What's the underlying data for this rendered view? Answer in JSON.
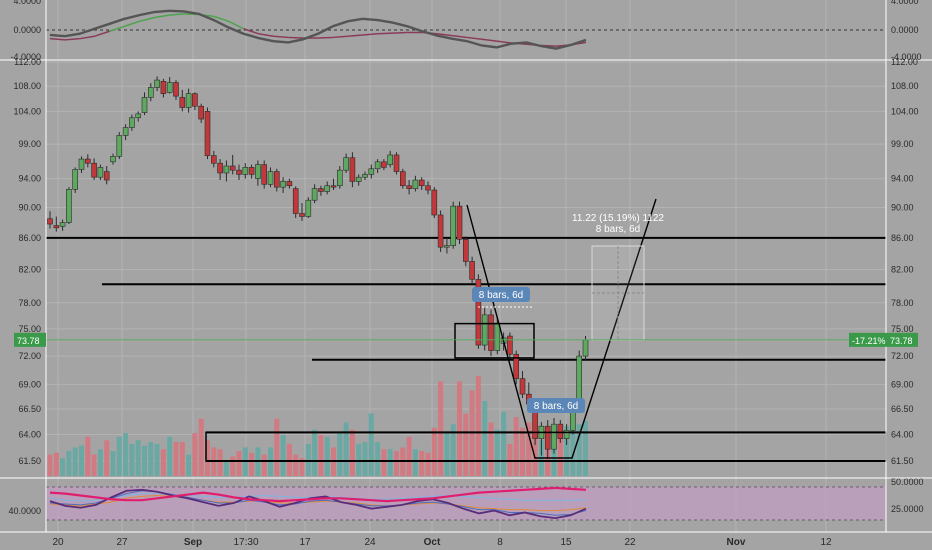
{
  "colors": {
    "background": "#a4a4a4",
    "up": "#5fa860",
    "down": "#c0383a",
    "vol_up": "#6aa8a4",
    "vol_down": "#d27a82",
    "osc_main": "#555555",
    "osc_green": "#4da34d",
    "osc_red": "#8a3b5b",
    "rsi_band": "#c29ec2",
    "price_tag": "#3a9a4a",
    "ruler_label": "#5b86b8"
  },
  "price_axis": {
    "ticks": [
      "112.00",
      "108.00",
      "104.00",
      "99.00",
      "94.00",
      "90.00",
      "86.00",
      "82.00",
      "78.00",
      "75.00",
      "72.00",
      "69.00",
      "66.50",
      "64.00",
      "61.50"
    ],
    "last_price": "73.78",
    "change": "-17.21%",
    "scale": "log"
  },
  "osc_axis": {
    "ticks": [
      "4.0000",
      "0.0000",
      "-4.0000"
    ]
  },
  "rsi_axis": {
    "left_tick": "40.0000",
    "right_ticks": [
      "50.0000",
      "25.0000"
    ]
  },
  "time_axis": {
    "labels": [
      "20",
      "27",
      "Sep",
      "17:30",
      "17",
      "24",
      "Oct",
      "8",
      "15",
      "22",
      "Nov",
      "12"
    ]
  },
  "annotations": {
    "ruler_top": "11.22 (15.19%) 1122",
    "ruler_bottom": "8 bars, 6d",
    "badge_1": "8 bars, 6d",
    "badge_2": "8 bars, 6d"
  },
  "chart_data": {
    "type": "candlestick",
    "candles": [
      {
        "o": 88.5,
        "h": 89.5,
        "l": 87.2,
        "c": 87.8
      },
      {
        "o": 87.6,
        "h": 88.8,
        "l": 86.8,
        "c": 87.3
      },
      {
        "o": 87.5,
        "h": 88.4,
        "l": 86.9,
        "c": 88.0
      },
      {
        "o": 88.0,
        "h": 92.8,
        "l": 87.8,
        "c": 92.5
      },
      {
        "o": 92.5,
        "h": 95.6,
        "l": 92.0,
        "c": 95.3
      },
      {
        "o": 95.3,
        "h": 97.2,
        "l": 94.8,
        "c": 96.8
      },
      {
        "o": 96.8,
        "h": 97.5,
        "l": 95.6,
        "c": 96.2
      },
      {
        "o": 96.2,
        "h": 96.9,
        "l": 93.8,
        "c": 94.2
      },
      {
        "o": 94.2,
        "h": 96.0,
        "l": 93.8,
        "c": 95.6
      },
      {
        "o": 95.0,
        "h": 95.8,
        "l": 93.2,
        "c": 93.8
      },
      {
        "o": 96.4,
        "h": 97.6,
        "l": 96.0,
        "c": 97.2
      },
      {
        "o": 97.2,
        "h": 100.8,
        "l": 96.8,
        "c": 100.3
      },
      {
        "o": 100.3,
        "h": 102.0,
        "l": 99.6,
        "c": 101.5
      },
      {
        "o": 101.5,
        "h": 103.5,
        "l": 101.0,
        "c": 103.0
      },
      {
        "o": 103.0,
        "h": 104.0,
        "l": 102.4,
        "c": 103.6
      },
      {
        "o": 103.8,
        "h": 107.0,
        "l": 103.4,
        "c": 106.2
      },
      {
        "o": 106.2,
        "h": 108.5,
        "l": 105.6,
        "c": 107.8
      },
      {
        "o": 107.8,
        "h": 109.6,
        "l": 107.2,
        "c": 109.0
      },
      {
        "o": 108.8,
        "h": 109.2,
        "l": 106.2,
        "c": 106.8
      },
      {
        "o": 107.0,
        "h": 109.5,
        "l": 106.8,
        "c": 108.6
      },
      {
        "o": 108.6,
        "h": 109.0,
        "l": 105.8,
        "c": 106.4
      },
      {
        "o": 106.2,
        "h": 107.4,
        "l": 104.0,
        "c": 104.6
      },
      {
        "o": 104.6,
        "h": 107.6,
        "l": 103.8,
        "c": 106.8
      },
      {
        "o": 106.8,
        "h": 107.0,
        "l": 104.2,
        "c": 104.8
      },
      {
        "o": 104.8,
        "h": 105.2,
        "l": 102.2,
        "c": 102.8
      },
      {
        "o": 104.0,
        "h": 104.6,
        "l": 96.8,
        "c": 97.3
      },
      {
        "o": 97.3,
        "h": 98.0,
        "l": 95.6,
        "c": 96.2
      },
      {
        "o": 96.2,
        "h": 96.8,
        "l": 93.8,
        "c": 94.8
      },
      {
        "o": 94.8,
        "h": 96.6,
        "l": 93.6,
        "c": 95.8
      },
      {
        "o": 95.8,
        "h": 97.4,
        "l": 94.6,
        "c": 95.2
      },
      {
        "o": 95.2,
        "h": 96.0,
        "l": 93.8,
        "c": 94.6
      },
      {
        "o": 94.6,
        "h": 96.2,
        "l": 94.0,
        "c": 95.6
      },
      {
        "o": 95.6,
        "h": 96.0,
        "l": 94.0,
        "c": 94.6
      },
      {
        "o": 94.0,
        "h": 96.6,
        "l": 93.0,
        "c": 96.0
      },
      {
        "o": 96.0,
        "h": 96.6,
        "l": 92.6,
        "c": 93.2
      },
      {
        "o": 93.2,
        "h": 95.6,
        "l": 92.8,
        "c": 95.0
      },
      {
        "o": 95.0,
        "h": 95.4,
        "l": 92.2,
        "c": 92.8
      },
      {
        "o": 92.8,
        "h": 94.2,
        "l": 92.0,
        "c": 93.6
      },
      {
        "o": 93.6,
        "h": 94.0,
        "l": 92.6,
        "c": 93.0
      },
      {
        "o": 92.6,
        "h": 92.9,
        "l": 88.6,
        "c": 89.2
      },
      {
        "o": 89.2,
        "h": 90.6,
        "l": 88.2,
        "c": 88.8
      },
      {
        "o": 88.8,
        "h": 91.4,
        "l": 88.6,
        "c": 91.0
      },
      {
        "o": 91.0,
        "h": 93.2,
        "l": 90.6,
        "c": 92.6
      },
      {
        "o": 92.6,
        "h": 93.0,
        "l": 91.6,
        "c": 92.2
      },
      {
        "o": 92.2,
        "h": 93.6,
        "l": 91.8,
        "c": 93.0
      },
      {
        "o": 93.0,
        "h": 94.0,
        "l": 92.4,
        "c": 92.8
      },
      {
        "o": 93.0,
        "h": 95.8,
        "l": 92.6,
        "c": 95.2
      },
      {
        "o": 95.2,
        "h": 97.6,
        "l": 94.8,
        "c": 97.0
      },
      {
        "o": 97.0,
        "h": 97.8,
        "l": 92.8,
        "c": 93.6
      },
      {
        "o": 93.6,
        "h": 94.6,
        "l": 93.0,
        "c": 94.2
      },
      {
        "o": 94.2,
        "h": 95.0,
        "l": 93.8,
        "c": 94.6
      },
      {
        "o": 94.6,
        "h": 96.0,
        "l": 94.0,
        "c": 95.4
      },
      {
        "o": 95.4,
        "h": 96.8,
        "l": 94.8,
        "c": 96.4
      },
      {
        "o": 96.4,
        "h": 96.8,
        "l": 95.2,
        "c": 95.6
      },
      {
        "o": 96.0,
        "h": 98.0,
        "l": 95.6,
        "c": 97.4
      },
      {
        "o": 97.4,
        "h": 97.8,
        "l": 94.6,
        "c": 95.0
      },
      {
        "o": 95.0,
        "h": 95.4,
        "l": 92.6,
        "c": 93.0
      },
      {
        "o": 93.0,
        "h": 93.8,
        "l": 91.8,
        "c": 92.6
      },
      {
        "o": 92.6,
        "h": 94.4,
        "l": 92.2,
        "c": 93.8
      },
      {
        "o": 93.8,
        "h": 94.2,
        "l": 92.4,
        "c": 93.0
      },
      {
        "o": 93.0,
        "h": 93.6,
        "l": 91.8,
        "c": 92.4
      },
      {
        "o": 92.4,
        "h": 92.8,
        "l": 88.6,
        "c": 89.0
      },
      {
        "o": 89.0,
        "h": 89.6,
        "l": 84.2,
        "c": 84.8
      },
      {
        "o": 84.8,
        "h": 86.0,
        "l": 84.0,
        "c": 85.0
      },
      {
        "o": 85.0,
        "h": 90.8,
        "l": 84.6,
        "c": 90.2
      },
      {
        "o": 90.2,
        "h": 90.8,
        "l": 85.2,
        "c": 85.8
      },
      {
        "o": 85.8,
        "h": 86.2,
        "l": 82.4,
        "c": 83.0
      },
      {
        "o": 83.0,
        "h": 83.6,
        "l": 80.2,
        "c": 80.8
      },
      {
        "o": 80.8,
        "h": 81.4,
        "l": 72.8,
        "c": 73.2
      },
      {
        "o": 73.2,
        "h": 77.4,
        "l": 72.6,
        "c": 76.6
      },
      {
        "o": 76.6,
        "h": 77.2,
        "l": 72.0,
        "c": 72.6
      },
      {
        "o": 72.6,
        "h": 76.4,
        "l": 72.2,
        "c": 75.6
      },
      {
        "o": 73.4,
        "h": 74.6,
        "l": 72.6,
        "c": 74.0
      },
      {
        "o": 74.2,
        "h": 74.6,
        "l": 71.8,
        "c": 72.2
      },
      {
        "o": 72.2,
        "h": 72.6,
        "l": 69.0,
        "c": 69.6
      },
      {
        "o": 69.6,
        "h": 70.4,
        "l": 67.6,
        "c": 68.0
      },
      {
        "o": 68.0,
        "h": 69.2,
        "l": 66.6,
        "c": 67.0
      },
      {
        "o": 67.0,
        "h": 67.4,
        "l": 63.0,
        "c": 63.6
      },
      {
        "o": 63.6,
        "h": 65.2,
        "l": 62.0,
        "c": 64.8
      },
      {
        "o": 64.8,
        "h": 65.4,
        "l": 61.8,
        "c": 62.6
      },
      {
        "o": 62.6,
        "h": 65.6,
        "l": 62.2,
        "c": 65.0
      },
      {
        "o": 65.0,
        "h": 65.4,
        "l": 63.2,
        "c": 63.6
      },
      {
        "o": 63.6,
        "h": 65.0,
        "l": 63.0,
        "c": 64.4
      },
      {
        "o": 64.4,
        "h": 67.4,
        "l": 64.0,
        "c": 66.8
      },
      {
        "o": 66.8,
        "h": 72.6,
        "l": 66.4,
        "c": 72.0
      },
      {
        "o": 72.0,
        "h": 74.2,
        "l": 71.6,
        "c": 73.78
      }
    ],
    "volume": [
      12,
      13,
      10,
      14,
      16,
      17,
      22,
      12,
      15,
      20,
      14,
      22,
      24,
      18,
      20,
      17,
      19,
      18,
      15,
      22,
      19,
      19,
      12,
      24,
      32,
      20,
      16,
      15,
      9,
      11,
      14,
      16,
      13,
      16,
      12,
      16,
      32,
      23,
      18,
      12,
      10,
      18,
      26,
      23,
      22,
      16,
      25,
      30,
      26,
      18,
      19,
      35,
      19,
      15,
      15,
      14,
      16,
      22,
      15,
      14,
      13,
      27,
      53,
      25,
      29,
      53,
      35,
      48,
      56,
      42,
      30,
      26,
      36,
      18,
      33,
      27,
      30,
      21,
      20,
      15,
      26,
      21,
      28,
      37,
      29,
      31
    ],
    "osc_line": [
      -0.8,
      -1.0,
      -0.6,
      0.2,
      1.0,
      1.8,
      2.4,
      2.9,
      3.1,
      3.0,
      2.6,
      1.6,
      0.4,
      -0.6,
      -1.3,
      -1.8,
      -2.0,
      -1.5,
      -0.6,
      0.6,
      1.4,
      1.8,
      1.6,
      1.2,
      0.6,
      -0.2,
      -0.9,
      -1.4,
      -1.8,
      -2.5,
      -2.8,
      -2.2,
      -2.0,
      -2.6,
      -3.0,
      -2.4,
      -1.6
    ],
    "osc_signal": [
      -1.4,
      -1.6,
      -1.4,
      -1.0,
      -0.2,
      0.6,
      1.4,
      2.0,
      2.4,
      2.6,
      2.5,
      2.2,
      1.4,
      0.2,
      -0.6,
      -1.0,
      -1.2,
      -1.3,
      -1.3,
      -1.2,
      -1.0,
      -0.8,
      -0.6,
      -0.5,
      -0.4,
      -0.4,
      -0.6,
      -0.9,
      -1.2,
      -1.5,
      -1.8,
      -2.1,
      -2.3,
      -2.5,
      -2.6,
      -2.4,
      -2.0
    ],
    "rsi_1": [
      35,
      30,
      28,
      31,
      39,
      46,
      47,
      45,
      41,
      38,
      34,
      30,
      33,
      40,
      35,
      29,
      33,
      38,
      40,
      34,
      31,
      27,
      29,
      31,
      35,
      37,
      33,
      27,
      22,
      25,
      20,
      23,
      19,
      17,
      20,
      27
    ],
    "rsi_2": [
      33,
      32,
      31,
      33,
      38,
      43,
      46,
      45,
      42,
      39,
      36,
      33,
      33,
      36,
      34,
      31,
      32,
      35,
      36,
      34,
      32,
      30,
      30,
      31,
      33,
      34,
      32,
      29,
      26,
      26,
      23,
      23,
      22,
      20,
      21,
      25
    ],
    "rsi_3": [
      32,
      31,
      30,
      32,
      34,
      38,
      40,
      41,
      40,
      38,
      36,
      34,
      34,
      35,
      35,
      33,
      33,
      34,
      35,
      34,
      33,
      31,
      30,
      31,
      32,
      33,
      32,
      30,
      28,
      27,
      26,
      26,
      25,
      25,
      26,
      28
    ],
    "rsi_4": [
      38,
      36,
      35,
      36,
      39,
      41,
      43,
      43,
      42,
      41,
      40,
      39,
      39,
      40,
      41,
      40,
      39,
      39,
      40,
      39,
      38,
      37,
      37,
      38,
      39,
      40,
      41,
      40,
      39,
      38,
      37,
      36,
      36,
      36,
      36,
      36
    ],
    "rsi_5": [
      44,
      43,
      41,
      39,
      37,
      36,
      36,
      38,
      40,
      42,
      44,
      42,
      39,
      37,
      36,
      35,
      36,
      37,
      38,
      38,
      37,
      36,
      35,
      36,
      37,
      38,
      40,
      42,
      44,
      45,
      46,
      47,
      48,
      49,
      48,
      47
    ]
  }
}
